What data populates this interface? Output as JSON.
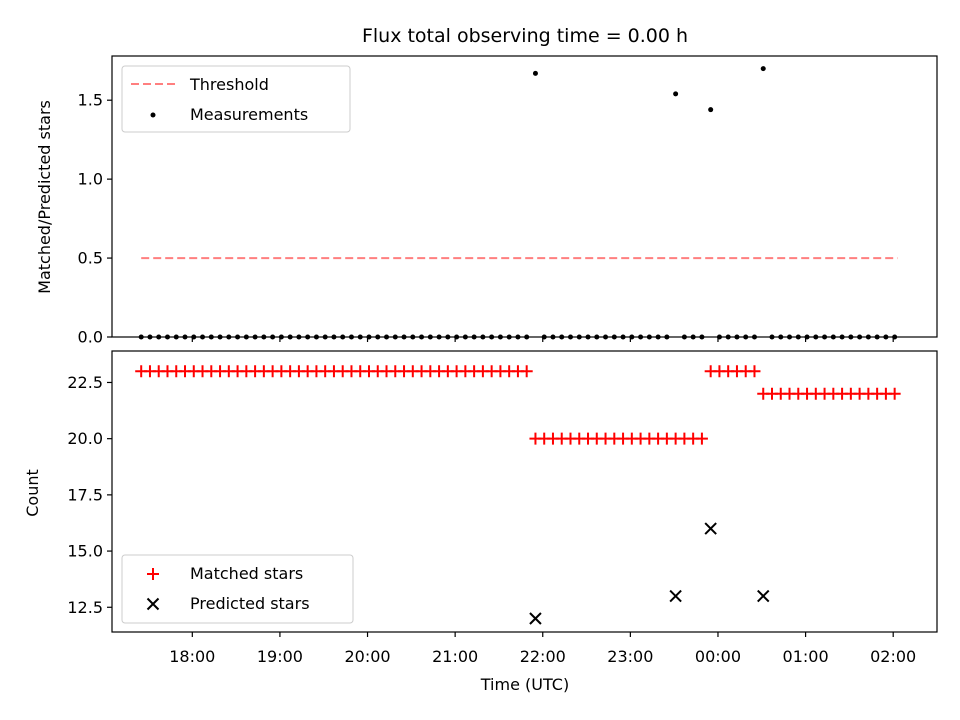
{
  "title": "Flux total observing time = 0.00 h",
  "colors": {
    "threshold": "#ff7f7f",
    "measurement": "#000000",
    "matched": "#ff0000",
    "predicted": "#000000"
  },
  "chart_data": [
    {
      "type": "scatter",
      "panel": "top",
      "ylabel": "Matched/Predicted stars",
      "ylim": [
        0,
        1.78
      ],
      "yticks": [
        "0.0",
        "0.5",
        "1.0",
        "1.5"
      ],
      "xlim": [
        "17:05",
        "02:30"
      ],
      "legend": {
        "placement": "top-left",
        "entries": [
          "Threshold",
          "Measurements"
        ]
      },
      "series": [
        {
          "name": "Threshold",
          "kind": "dashed-line",
          "x": [
            "17:25",
            "02:03"
          ],
          "y": [
            0.5,
            0.5
          ]
        },
        {
          "name": "Measurements",
          "kind": "scatter",
          "points": [
            {
              "x": "21:55",
              "y": 1.67
            },
            {
              "x": "23:31",
              "y": 1.54
            },
            {
              "x": "23:55",
              "y": 1.44
            },
            {
              "x": "00:31",
              "y": 1.7
            }
          ],
          "zero_runs": [
            {
              "from": "17:25",
              "to": "21:49",
              "y": 0
            },
            {
              "from": "22:01",
              "to": "23:25",
              "y": 0
            },
            {
              "from": "23:37",
              "to": "23:49",
              "y": 0
            },
            {
              "from": "00:01",
              "to": "00:25",
              "y": 0
            },
            {
              "from": "00:37",
              "to": "02:01",
              "y": 0
            }
          ],
          "sample_interval_min": 6
        }
      ]
    },
    {
      "type": "scatter",
      "panel": "bottom",
      "xlabel": "Time (UTC)",
      "ylabel": "Count",
      "ylim": [
        11.4,
        23.9
      ],
      "yticks": [
        "12.5",
        "15.0",
        "17.5",
        "20.0",
        "22.5"
      ],
      "xticks": [
        "18:00",
        "19:00",
        "20:00",
        "21:00",
        "22:00",
        "23:00",
        "00:00",
        "01:00",
        "02:00"
      ],
      "xlim": [
        "17:05",
        "02:30"
      ],
      "legend": {
        "placement": "bottom-left",
        "entries": [
          "Matched stars",
          "Predicted stars"
        ]
      },
      "series": [
        {
          "name": "Matched stars",
          "marker": "plus",
          "runs": [
            {
              "from": "17:25",
              "to": "21:49",
              "y": 23
            },
            {
              "from": "21:55",
              "to": "23:49",
              "y": 20
            },
            {
              "from": "23:55",
              "to": "00:25",
              "y": 23
            },
            {
              "from": "00:31",
              "to": "02:03",
              "y": 22
            }
          ],
          "sample_interval_min": 6
        },
        {
          "name": "Predicted stars",
          "marker": "x",
          "points": [
            {
              "x": "21:55",
              "y": 12
            },
            {
              "x": "23:31",
              "y": 13
            },
            {
              "x": "23:55",
              "y": 16
            },
            {
              "x": "00:31",
              "y": 13
            }
          ]
        }
      ]
    }
  ]
}
